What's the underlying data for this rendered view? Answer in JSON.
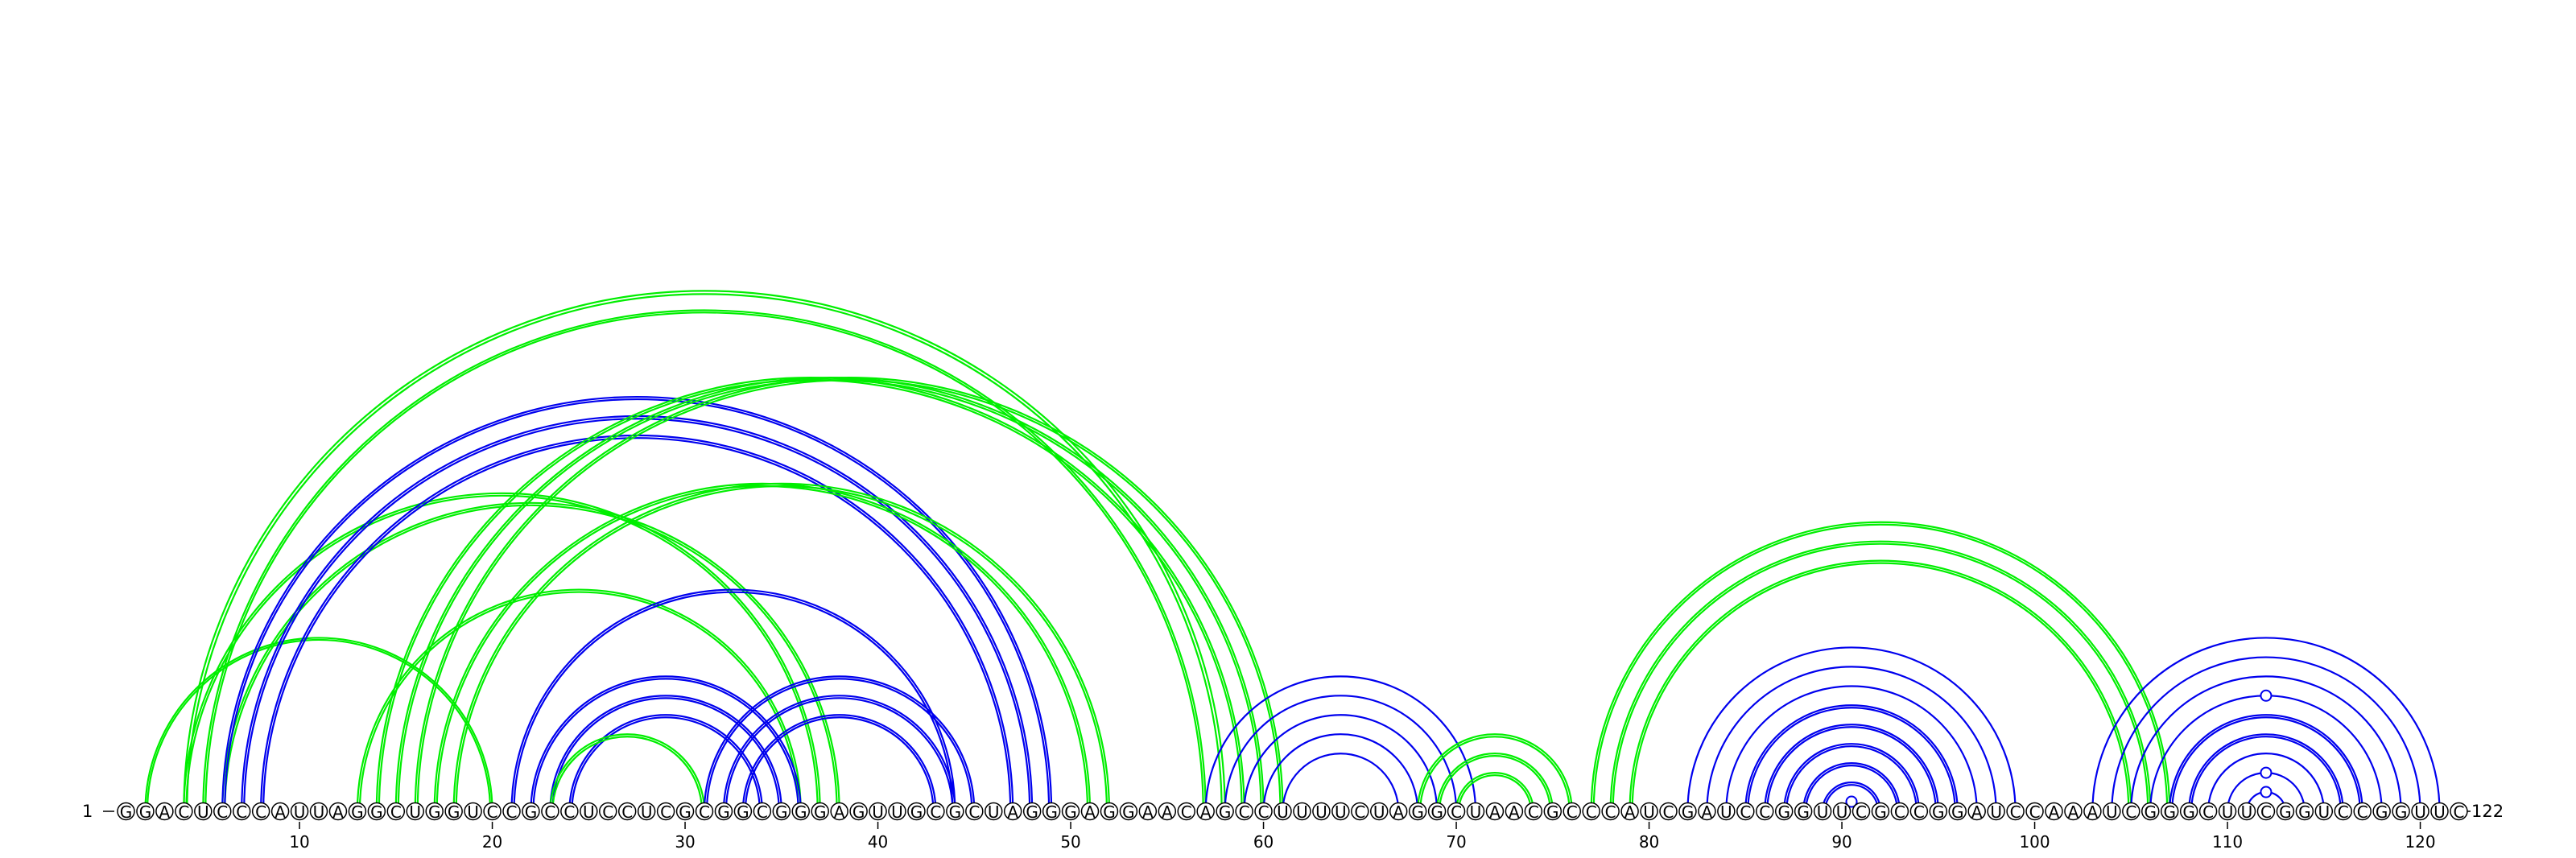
{
  "diagram": {
    "sequence": "GGACUCCCAUUAGGCUGGUCCGCCUCCUCGCGGCGGGAGUUGCGCUAGGGAGGAACAGCCUUUUCUAGGCUAACGCCCAUCGAUCCGGUUCGCCGGAUCCAAAUCGGGCUUCGGUCCGGUUC",
    "start_label": "1",
    "end_label": "122",
    "tick_labels": [
      "10",
      "20",
      "30",
      "40",
      "50",
      "60",
      "70",
      "80",
      "90",
      "100",
      "110",
      "120"
    ],
    "colors": {
      "blue": "#0000ee",
      "green": "#00ee00",
      "black": "#000000"
    },
    "arcs": [
      {
        "i": 2,
        "j": 20,
        "color": "green",
        "offsets": [
          0,
          2.5
        ]
      },
      {
        "i": 4,
        "j": 37,
        "color": "green",
        "offsets": [
          0,
          3
        ]
      },
      {
        "i": 4,
        "j": 58,
        "color": "green",
        "offsets": [
          0,
          4
        ]
      },
      {
        "i": 5,
        "j": 57,
        "color": "green",
        "offsets": [
          0,
          3
        ]
      },
      {
        "i": 6,
        "j": 38,
        "color": "green",
        "offsets": [
          0,
          3
        ]
      },
      {
        "i": 6,
        "j": 49,
        "color": "blue",
        "offsets": [
          0,
          3
        ]
      },
      {
        "i": 7,
        "j": 48,
        "color": "blue",
        "offsets": [
          0,
          3
        ]
      },
      {
        "i": 8,
        "j": 47,
        "color": "blue",
        "offsets": [
          0,
          3
        ]
      },
      {
        "i": 13,
        "j": 36,
        "color": "green",
        "offsets": [
          0,
          3
        ]
      },
      {
        "i": 14,
        "j": 59,
        "color": "green",
        "offsets": [
          0,
          3
        ]
      },
      {
        "i": 15,
        "j": 60,
        "color": "green",
        "offsets": [
          0,
          3
        ]
      },
      {
        "i": 16,
        "j": 61,
        "color": "green",
        "offsets": [
          0,
          3
        ]
      },
      {
        "i": 17,
        "j": 51,
        "color": "green",
        "offsets": [
          0,
          3
        ]
      },
      {
        "i": 18,
        "j": 52,
        "color": "green",
        "offsets": [
          0,
          3
        ]
      },
      {
        "i": 21,
        "j": 44,
        "color": "blue",
        "offsets": [
          0,
          3
        ]
      },
      {
        "i": 22,
        "j": 36,
        "color": "blue",
        "offsets": [
          0,
          3
        ]
      },
      {
        "i": 23,
        "j": 35,
        "color": "blue",
        "offsets": [
          0,
          3
        ]
      },
      {
        "i": 24,
        "j": 34,
        "color": "blue",
        "offsets": [
          0,
          3
        ]
      },
      {
        "i": 23,
        "j": 31,
        "color": "green",
        "offsets": [
          0,
          3
        ]
      },
      {
        "i": 31,
        "j": 45,
        "color": "blue",
        "offsets": [
          0,
          3
        ]
      },
      {
        "i": 32,
        "j": 44,
        "color": "blue",
        "offsets": [
          0,
          3
        ]
      },
      {
        "i": 33,
        "j": 43,
        "color": "blue",
        "offsets": [
          0,
          3
        ]
      },
      {
        "i": 57,
        "j": 71,
        "color": "blue",
        "offsets": [
          0
        ]
      },
      {
        "i": 58,
        "j": 70,
        "color": "blue",
        "offsets": [
          0
        ]
      },
      {
        "i": 59,
        "j": 69,
        "color": "blue",
        "offsets": [
          0
        ]
      },
      {
        "i": 60,
        "j": 68,
        "color": "blue",
        "offsets": [
          0
        ]
      },
      {
        "i": 61,
        "j": 67,
        "color": "blue",
        "offsets": [
          0
        ]
      },
      {
        "i": 68,
        "j": 76,
        "color": "green",
        "offsets": [
          0,
          3
        ]
      },
      {
        "i": 69,
        "j": 75,
        "color": "green",
        "offsets": [
          0,
          3
        ]
      },
      {
        "i": 70,
        "j": 74,
        "color": "green",
        "offsets": [
          0,
          3
        ]
      },
      {
        "i": 77,
        "j": 107,
        "color": "green",
        "offsets": [
          0,
          3
        ]
      },
      {
        "i": 78,
        "j": 106,
        "color": "green",
        "offsets": [
          0,
          3
        ]
      },
      {
        "i": 79,
        "j": 105,
        "color": "green",
        "offsets": [
          0,
          3
        ]
      },
      {
        "i": 82,
        "j": 99,
        "color": "blue",
        "offsets": [
          0
        ]
      },
      {
        "i": 83,
        "j": 98,
        "color": "blue",
        "offsets": [
          0
        ]
      },
      {
        "i": 84,
        "j": 97,
        "color": "blue",
        "offsets": [
          0
        ]
      },
      {
        "i": 85,
        "j": 96,
        "color": "blue",
        "offsets": [
          0,
          3
        ]
      },
      {
        "i": 86,
        "j": 95,
        "color": "blue",
        "offsets": [
          0,
          3
        ]
      },
      {
        "i": 87,
        "j": 94,
        "color": "blue",
        "offsets": [
          0,
          3
        ]
      },
      {
        "i": 88,
        "j": 93,
        "color": "blue",
        "offsets": [
          0,
          3
        ]
      },
      {
        "i": 89,
        "j": 92,
        "color": "blue",
        "offsets": [
          0,
          3
        ]
      },
      {
        "i": 90,
        "j": 91,
        "color": "blue",
        "offsets": [
          0
        ],
        "marker": true
      },
      {
        "i": 103,
        "j": 121,
        "color": "blue",
        "offsets": [
          0
        ]
      },
      {
        "i": 104,
        "j": 120,
        "color": "blue",
        "offsets": [
          0
        ]
      },
      {
        "i": 105,
        "j": 119,
        "color": "blue",
        "offsets": [
          0
        ]
      },
      {
        "i": 106,
        "j": 118,
        "color": "blue",
        "offsets": [
          0
        ],
        "marker": true
      },
      {
        "i": 107,
        "j": 117,
        "color": "blue",
        "offsets": [
          0,
          3
        ]
      },
      {
        "i": 108,
        "j": 116,
        "color": "blue",
        "offsets": [
          0,
          3
        ]
      },
      {
        "i": 109,
        "j": 115,
        "color": "blue",
        "offsets": [
          0
        ]
      },
      {
        "i": 110,
        "j": 114,
        "color": "blue",
        "offsets": [
          0
        ],
        "marker": true
      },
      {
        "i": 111,
        "j": 113,
        "color": "blue",
        "offsets": [
          0
        ],
        "marker": true
      }
    ]
  }
}
